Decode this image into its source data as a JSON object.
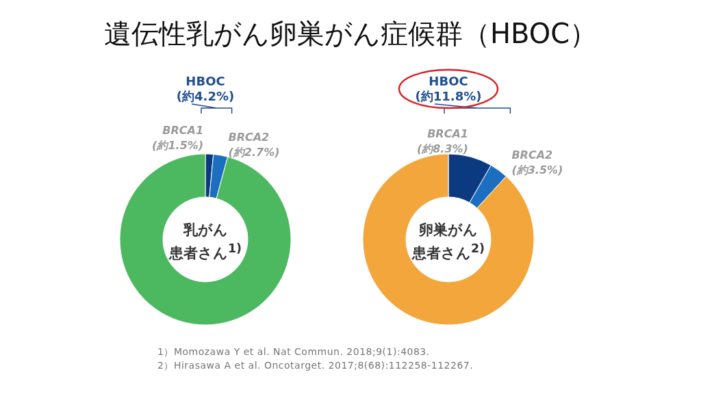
{
  "chart_data": [
    {
      "type": "donut",
      "title": "遺伝性乳がん卵巣がん症候群（HBOC）",
      "categories": [
        "BRCA1",
        "BRCA2",
        null
      ],
      "values": [
        1.5,
        2.7,
        95.8
      ],
      "colors": [
        "#0b3a80",
        "#1c6fbf",
        "#4cb85f"
      ],
      "value_labels": [
        "(約1.5%)",
        "(約2.7%)",
        null
      ],
      "annotations": [
        "HBOC",
        "(約4.2%)",
        "乳がん",
        "患者さん$^{1)}$"
      ]
    },
    {
      "type": "donut",
      "categories": [
        "BRCA1",
        "BRCA2",
        null
      ],
      "values": [
        8.3,
        3.5,
        88.2
      ],
      "colors": [
        "#0b3a80",
        "#1c6fbf",
        "#f2a63b"
      ],
      "value_labels": [
        "(約8.3%)",
        "(約3.5%)",
        null
      ],
      "annotations": [
        "HBOC",
        "(約11.8%)",
        "卵巣がん",
        "患者さん$^{2)}$",
        "1）Momozawa Y et al. Nat Commun. 2018;9(1):4083.",
        "2）Hirasawa A et al. Oncotarget. 2017;8(68):112258-112267."
      ]
    }
  ]
}
